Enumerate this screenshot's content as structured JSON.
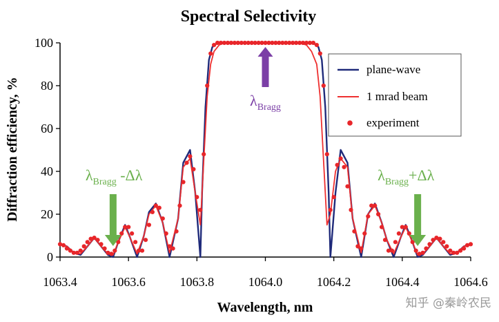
{
  "chart_data": {
    "type": "line",
    "title": "Spectral Selectivity",
    "xlabel": "Wavelength, nm",
    "ylabel": "Diffraction efficiency, %",
    "xlim": [
      1063.4,
      1064.6
    ],
    "ylim": [
      0,
      100
    ],
    "x_ticks": [
      "1063.4",
      "1063.6",
      "1063.8",
      "1064.0",
      "1064.2",
      "1064.4",
      "1064.6"
    ],
    "y_ticks": [
      "0",
      "20",
      "40",
      "60",
      "80",
      "100"
    ],
    "grid": false,
    "legend_position": "top-right",
    "series": [
      {
        "name": "plane-wave",
        "color": "#1f2a7a",
        "style": "line",
        "x": [
          1063.4,
          1063.42,
          1063.44,
          1063.46,
          1063.48,
          1063.5,
          1063.52,
          1063.54,
          1063.555,
          1063.57,
          1063.59,
          1063.605,
          1063.625,
          1063.645,
          1063.66,
          1063.68,
          1063.7,
          1063.72,
          1063.745,
          1063.76,
          1063.78,
          1063.795,
          1063.81,
          1063.815,
          1063.825,
          1063.835,
          1063.845,
          1063.86,
          1063.88,
          1063.9,
          1063.95,
          1064.0,
          1064.05,
          1064.1,
          1064.12,
          1064.14,
          1064.155,
          1064.165,
          1064.175,
          1064.185,
          1064.19,
          1064.205,
          1064.22,
          1064.24,
          1064.255,
          1064.28,
          1064.3,
          1064.32,
          1064.34,
          1064.355,
          1064.375,
          1064.395,
          1064.41,
          1064.43,
          1064.445,
          1064.46,
          1064.48,
          1064.5,
          1064.52,
          1064.54,
          1064.56,
          1064.58,
          1064.6
        ],
        "y": [
          6,
          5,
          2,
          1,
          5,
          9,
          5,
          1,
          0,
          7,
          15,
          9,
          0,
          10,
          21,
          25,
          16,
          0,
          18,
          44,
          50,
          30,
          0,
          30,
          70,
          92,
          98,
          100,
          100,
          100,
          100,
          100,
          100,
          100,
          100,
          100,
          98,
          92,
          70,
          30,
          0,
          30,
          50,
          44,
          18,
          0,
          20,
          25,
          16,
          8,
          0,
          9,
          15,
          7,
          0,
          1,
          5,
          9,
          5,
          1,
          2,
          5,
          6
        ]
      },
      {
        "name": "1 mrad beam",
        "color": "#ee2f2f",
        "style": "line",
        "x": [
          1063.4,
          1063.42,
          1063.44,
          1063.46,
          1063.48,
          1063.5,
          1063.52,
          1063.54,
          1063.555,
          1063.57,
          1063.59,
          1063.605,
          1063.625,
          1063.645,
          1063.66,
          1063.68,
          1063.7,
          1063.72,
          1063.745,
          1063.76,
          1063.78,
          1063.795,
          1063.81,
          1063.82,
          1063.83,
          1063.84,
          1063.85,
          1063.865,
          1063.88,
          1063.9,
          1063.95,
          1064.0,
          1064.05,
          1064.1,
          1064.12,
          1064.135,
          1064.15,
          1064.16,
          1064.17,
          1064.18,
          1064.19,
          1064.205,
          1064.22,
          1064.24,
          1064.255,
          1064.28,
          1064.3,
          1064.32,
          1064.34,
          1064.355,
          1064.375,
          1064.395,
          1064.41,
          1064.43,
          1064.445,
          1064.46,
          1064.48,
          1064.5,
          1064.52,
          1064.54,
          1064.56,
          1064.58,
          1064.6
        ],
        "y": [
          6,
          5,
          2,
          1.5,
          5,
          9,
          5,
          1.5,
          1,
          7,
          14,
          9,
          1.5,
          10,
          20,
          24,
          16,
          2,
          18,
          42,
          46,
          30,
          15,
          45,
          75,
          90,
          96,
          99,
          100,
          100,
          100,
          100,
          100,
          100,
          99,
          96,
          90,
          75,
          45,
          15,
          20,
          40,
          46,
          42,
          18,
          2,
          20,
          24,
          16,
          8,
          1.5,
          9,
          14,
          7,
          1,
          1.5,
          5,
          9,
          5,
          1.5,
          2,
          5,
          6
        ]
      },
      {
        "name": "experiment",
        "color": "#e8262a",
        "style": "markers",
        "x": [
          1063.4,
          1063.41,
          1063.42,
          1063.43,
          1063.44,
          1063.45,
          1063.46,
          1063.47,
          1063.48,
          1063.49,
          1063.5,
          1063.51,
          1063.52,
          1063.53,
          1063.54,
          1063.55,
          1063.56,
          1063.57,
          1063.58,
          1063.59,
          1063.6,
          1063.61,
          1063.62,
          1063.63,
          1063.64,
          1063.65,
          1063.66,
          1063.67,
          1063.68,
          1063.69,
          1063.7,
          1063.71,
          1063.72,
          1063.73,
          1063.74,
          1063.75,
          1063.76,
          1063.77,
          1063.78,
          1063.79,
          1063.8,
          1063.81,
          1063.82,
          1063.83,
          1063.84,
          1063.85,
          1063.86,
          1063.87,
          1063.88,
          1063.89,
          1063.9,
          1063.91,
          1063.92,
          1063.93,
          1063.94,
          1063.95,
          1063.96,
          1063.97,
          1063.98,
          1063.99,
          1064.0,
          1064.01,
          1064.02,
          1064.03,
          1064.04,
          1064.05,
          1064.06,
          1064.07,
          1064.08,
          1064.09,
          1064.1,
          1064.11,
          1064.12,
          1064.13,
          1064.14,
          1064.15,
          1064.16,
          1064.17,
          1064.18,
          1064.19,
          1064.2,
          1064.21,
          1064.22,
          1064.23,
          1064.24,
          1064.25,
          1064.26,
          1064.27,
          1064.28,
          1064.29,
          1064.3,
          1064.31,
          1064.32,
          1064.33,
          1064.34,
          1064.35,
          1064.36,
          1064.37,
          1064.38,
          1064.39,
          1064.4,
          1064.41,
          1064.42,
          1064.43,
          1064.44,
          1064.45,
          1064.46,
          1064.47,
          1064.48,
          1064.49,
          1064.5,
          1064.51,
          1064.52,
          1064.53,
          1064.54,
          1064.55,
          1064.56,
          1064.57,
          1064.58,
          1064.59,
          1064.6
        ],
        "y": [
          6,
          5.5,
          4,
          3,
          2,
          2,
          3,
          5,
          7,
          8.5,
          9,
          8,
          6,
          4,
          2,
          1.5,
          3,
          7,
          11,
          14,
          14,
          11,
          7,
          3,
          3,
          8,
          15,
          21,
          24,
          23,
          18,
          11,
          5,
          4,
          12,
          24,
          35,
          44,
          47,
          41,
          28,
          22,
          48,
          80,
          95,
          99,
          100,
          100,
          100,
          100,
          100,
          100,
          100,
          100,
          100,
          100,
          100,
          100,
          100,
          100,
          100,
          100,
          100,
          100,
          100,
          100,
          100,
          100,
          100,
          100,
          100,
          100,
          100,
          100,
          100,
          99,
          95,
          80,
          48,
          22,
          28,
          43,
          46,
          42,
          33,
          22,
          12,
          5,
          4,
          11,
          19,
          24,
          24,
          20,
          14,
          8,
          3,
          3,
          7,
          11,
          14,
          14,
          11,
          7,
          3,
          1.5,
          2,
          4,
          6,
          8,
          9,
          8.5,
          7,
          5,
          3,
          2,
          2,
          3,
          4,
          5.5,
          6
        ]
      }
    ],
    "annotations": [
      {
        "id": "bragg",
        "base": "λ",
        "sub": "Bragg",
        "suffix": "",
        "x": 1064.0,
        "y": 100,
        "color": "#7b3fa6",
        "arrow": "up"
      },
      {
        "id": "bragg-minus",
        "base": "λ",
        "sub": "Bragg",
        "suffix": " -Δλ",
        "x": 1063.555,
        "y": 0,
        "color": "#6ab04c",
        "arrow": "down"
      },
      {
        "id": "bragg-plus",
        "base": "λ",
        "sub": "Bragg",
        "suffix": "+Δλ",
        "x": 1064.445,
        "y": 0,
        "color": "#6ab04c",
        "arrow": "down"
      }
    ]
  },
  "watermark": "知乎 @秦岭农民"
}
